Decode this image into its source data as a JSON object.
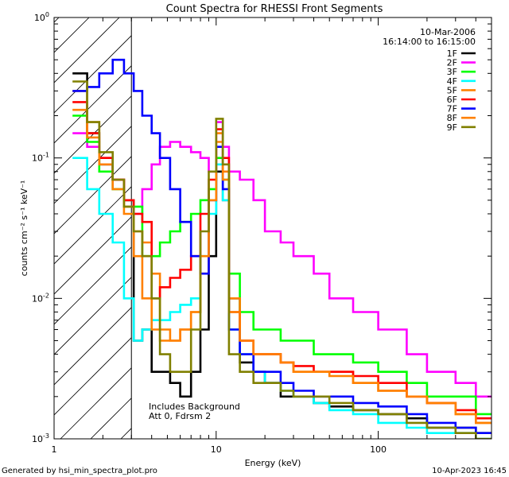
{
  "footer": {
    "left": "Generated by hsi_min_spectra_plot.pro",
    "right": "10-Apr-2023 16:45"
  },
  "chart_data": {
    "type": "line",
    "title": "Count Spectra for RHESSI Front Segments",
    "xlabel": "Energy (keV)",
    "ylabel": "counts cm⁻² s⁻¹ keV⁻¹",
    "x_scale": "log",
    "y_scale": "log",
    "xlim": [
      1,
      500
    ],
    "ylim": [
      0.001,
      1
    ],
    "x_ticks": [
      {
        "value": 1,
        "label": "1"
      },
      {
        "value": 10,
        "label": "10"
      },
      {
        "value": 100,
        "label": "100"
      }
    ],
    "y_ticks": [
      {
        "value": 1,
        "base": "10",
        "exp": "0"
      },
      {
        "value": 0.1,
        "base": "10",
        "exp": "-1"
      },
      {
        "value": 0.01,
        "base": "10",
        "exp": "-2"
      },
      {
        "value": 0.001,
        "base": "10",
        "exp": "-3"
      }
    ],
    "legend_position": "top-right",
    "date": "10-Mar-2006",
    "time_range": "16:14:00 to 16:15:00",
    "annotation_lines": [
      "Includes Background",
      "Att 0, Fdrsm 2"
    ],
    "shaded_region": {
      "x_min": 1,
      "x_max": 3,
      "pattern": "diagonal-hatch"
    },
    "series": [
      {
        "name": "1F",
        "color": "#000000",
        "x": [
          1.3,
          1.6,
          1.9,
          2.3,
          2.7,
          3.1,
          3.5,
          4.0,
          4.5,
          5.2,
          6.0,
          7.0,
          8.0,
          9.0,
          10.0,
          11.0,
          12.0,
          14,
          17,
          20,
          25,
          30,
          40,
          50,
          70,
          100,
          150,
          200,
          300,
          400
        ],
        "y": [
          0.4,
          0.15,
          0.09,
          0.07,
          0.05,
          0.005,
          0.006,
          0.003,
          0.003,
          0.0025,
          0.002,
          0.003,
          0.006,
          0.02,
          0.08,
          0.05,
          0.01,
          0.0035,
          0.003,
          0.0025,
          0.002,
          0.002,
          0.0018,
          0.0017,
          0.0016,
          0.0015,
          0.0014,
          0.0012,
          0.0012,
          0.0011
        ]
      },
      {
        "name": "2F",
        "color": "#ff00ff",
        "x": [
          1.3,
          1.6,
          1.9,
          2.3,
          2.7,
          3.1,
          3.5,
          4.0,
          4.5,
          5.2,
          6.0,
          7.0,
          8.0,
          9.0,
          10.0,
          11.0,
          12.0,
          14,
          17,
          20,
          25,
          30,
          40,
          50,
          70,
          100,
          150,
          200,
          300,
          400
        ],
        "y": [
          0.15,
          0.12,
          0.1,
          0.07,
          0.05,
          0.04,
          0.06,
          0.09,
          0.12,
          0.13,
          0.12,
          0.11,
          0.1,
          0.08,
          0.18,
          0.12,
          0.08,
          0.07,
          0.05,
          0.03,
          0.025,
          0.02,
          0.015,
          0.01,
          0.008,
          0.006,
          0.004,
          0.003,
          0.0025,
          0.002
        ]
      },
      {
        "name": "3F",
        "color": "#00ff00",
        "x": [
          1.3,
          1.6,
          1.9,
          2.3,
          2.7,
          3.1,
          3.5,
          4.0,
          4.5,
          5.2,
          6.0,
          7.0,
          8.0,
          9.0,
          10.0,
          11.0,
          12.0,
          14,
          17,
          20,
          25,
          30,
          40,
          50,
          70,
          100,
          150,
          200,
          300,
          400
        ],
        "y": [
          0.2,
          0.13,
          0.08,
          0.06,
          0.05,
          0.045,
          0.02,
          0.02,
          0.025,
          0.03,
          0.035,
          0.04,
          0.05,
          0.06,
          0.1,
          0.07,
          0.015,
          0.008,
          0.006,
          0.006,
          0.005,
          0.005,
          0.004,
          0.004,
          0.0035,
          0.003,
          0.0025,
          0.002,
          0.002,
          0.0015
        ]
      },
      {
        "name": "4F",
        "color": "#00ffff",
        "x": [
          1.3,
          1.6,
          1.9,
          2.3,
          2.7,
          3.1,
          3.5,
          4.0,
          4.5,
          5.2,
          6.0,
          7.0,
          8.0,
          9.0,
          10.0,
          11.0,
          12.0,
          14,
          17,
          20,
          25,
          30,
          40,
          50,
          70,
          100,
          150,
          200,
          300,
          400
        ],
        "y": [
          0.1,
          0.06,
          0.04,
          0.025,
          0.01,
          0.005,
          0.006,
          0.007,
          0.007,
          0.008,
          0.009,
          0.01,
          0.02,
          0.04,
          0.09,
          0.05,
          0.006,
          0.004,
          0.003,
          0.0025,
          0.0022,
          0.002,
          0.0018,
          0.0016,
          0.0015,
          0.0013,
          0.0012,
          0.0011,
          0.0011,
          0.001
        ]
      },
      {
        "name": "5F",
        "color": "#ff8000",
        "x": [
          1.3,
          1.6,
          1.9,
          2.3,
          2.7,
          3.1,
          3.5,
          4.0,
          4.5,
          5.2,
          6.0,
          7.0,
          8.0,
          9.0,
          10.0,
          11.0,
          12.0,
          14,
          17,
          20,
          25,
          30,
          40,
          50,
          70,
          100,
          150,
          200,
          300,
          400
        ],
        "y": [
          0.3,
          0.18,
          0.1,
          0.07,
          0.045,
          0.03,
          0.025,
          0.015,
          0.006,
          0.005,
          0.006,
          0.008,
          0.015,
          0.05,
          0.15,
          0.08,
          0.01,
          0.005,
          0.004,
          0.004,
          0.0035,
          0.003,
          0.003,
          0.003,
          0.0025,
          0.0022,
          0.002,
          0.0018,
          0.0015,
          0.0013
        ]
      },
      {
        "name": "6F",
        "color": "#ff0000",
        "x": [
          1.3,
          1.6,
          1.9,
          2.3,
          2.7,
          3.1,
          3.5,
          4.0,
          4.5,
          5.2,
          6.0,
          7.0,
          8.0,
          9.0,
          10.0,
          11.0,
          12.0,
          14,
          17,
          20,
          25,
          30,
          40,
          50,
          70,
          100,
          150,
          200,
          300,
          400
        ],
        "y": [
          0.25,
          0.15,
          0.1,
          0.07,
          0.05,
          0.04,
          0.035,
          0.01,
          0.012,
          0.014,
          0.016,
          0.02,
          0.04,
          0.07,
          0.16,
          0.1,
          0.008,
          0.005,
          0.004,
          0.004,
          0.0035,
          0.0033,
          0.003,
          0.003,
          0.0028,
          0.0025,
          0.002,
          0.0018,
          0.0016,
          0.0014
        ]
      },
      {
        "name": "7F",
        "color": "#0000ff",
        "x": [
          1.3,
          1.6,
          1.9,
          2.3,
          2.7,
          3.1,
          3.5,
          4.0,
          4.5,
          5.2,
          6.0,
          7.0,
          8.0,
          9.0,
          10.0,
          11.0,
          12.0,
          14,
          17,
          20,
          25,
          30,
          40,
          50,
          70,
          100,
          150,
          200,
          300,
          400
        ],
        "y": [
          0.3,
          0.32,
          0.4,
          0.5,
          0.4,
          0.3,
          0.2,
          0.15,
          0.1,
          0.06,
          0.035,
          0.02,
          0.015,
          0.05,
          0.12,
          0.06,
          0.006,
          0.004,
          0.003,
          0.003,
          0.0025,
          0.0022,
          0.002,
          0.002,
          0.0018,
          0.0017,
          0.0015,
          0.0013,
          0.0012,
          0.0011
        ]
      },
      {
        "name": "8F",
        "color": "#ff8000",
        "x": [
          1.3,
          1.6,
          1.9,
          2.3,
          2.7,
          3.1,
          3.5,
          4.0,
          4.5,
          5.2,
          6.0,
          7.0,
          8.0,
          9.0,
          10.0,
          11.0,
          12.0,
          14,
          17,
          20,
          25,
          30,
          40,
          50,
          70,
          100,
          150,
          200,
          300,
          400
        ],
        "y": [
          0.22,
          0.14,
          0.09,
          0.06,
          0.04,
          0.02,
          0.01,
          0.006,
          0.005,
          0.005,
          0.006,
          0.008,
          0.02,
          0.05,
          0.13,
          0.07,
          0.008,
          0.005,
          0.004,
          0.004,
          0.0035,
          0.003,
          0.003,
          0.0028,
          0.0025,
          0.0022,
          0.002,
          0.0018,
          0.0015,
          0.0013
        ]
      },
      {
        "name": "9F",
        "color": "#808000",
        "x": [
          1.3,
          1.6,
          1.9,
          2.3,
          2.7,
          3.1,
          3.5,
          4.0,
          4.5,
          5.2,
          6.0,
          7.0,
          8.0,
          9.0,
          10.0,
          11.0,
          12.0,
          14,
          17,
          20,
          25,
          30,
          40,
          50,
          70,
          100,
          150,
          200,
          300,
          400
        ],
        "y": [
          0.35,
          0.18,
          0.11,
          0.07,
          0.045,
          0.03,
          0.02,
          0.01,
          0.004,
          0.003,
          0.003,
          0.006,
          0.03,
          0.08,
          0.19,
          0.09,
          0.004,
          0.003,
          0.0025,
          0.0025,
          0.0022,
          0.002,
          0.002,
          0.0018,
          0.0016,
          0.0015,
          0.0013,
          0.0012,
          0.0011,
          0.001
        ]
      }
    ]
  }
}
